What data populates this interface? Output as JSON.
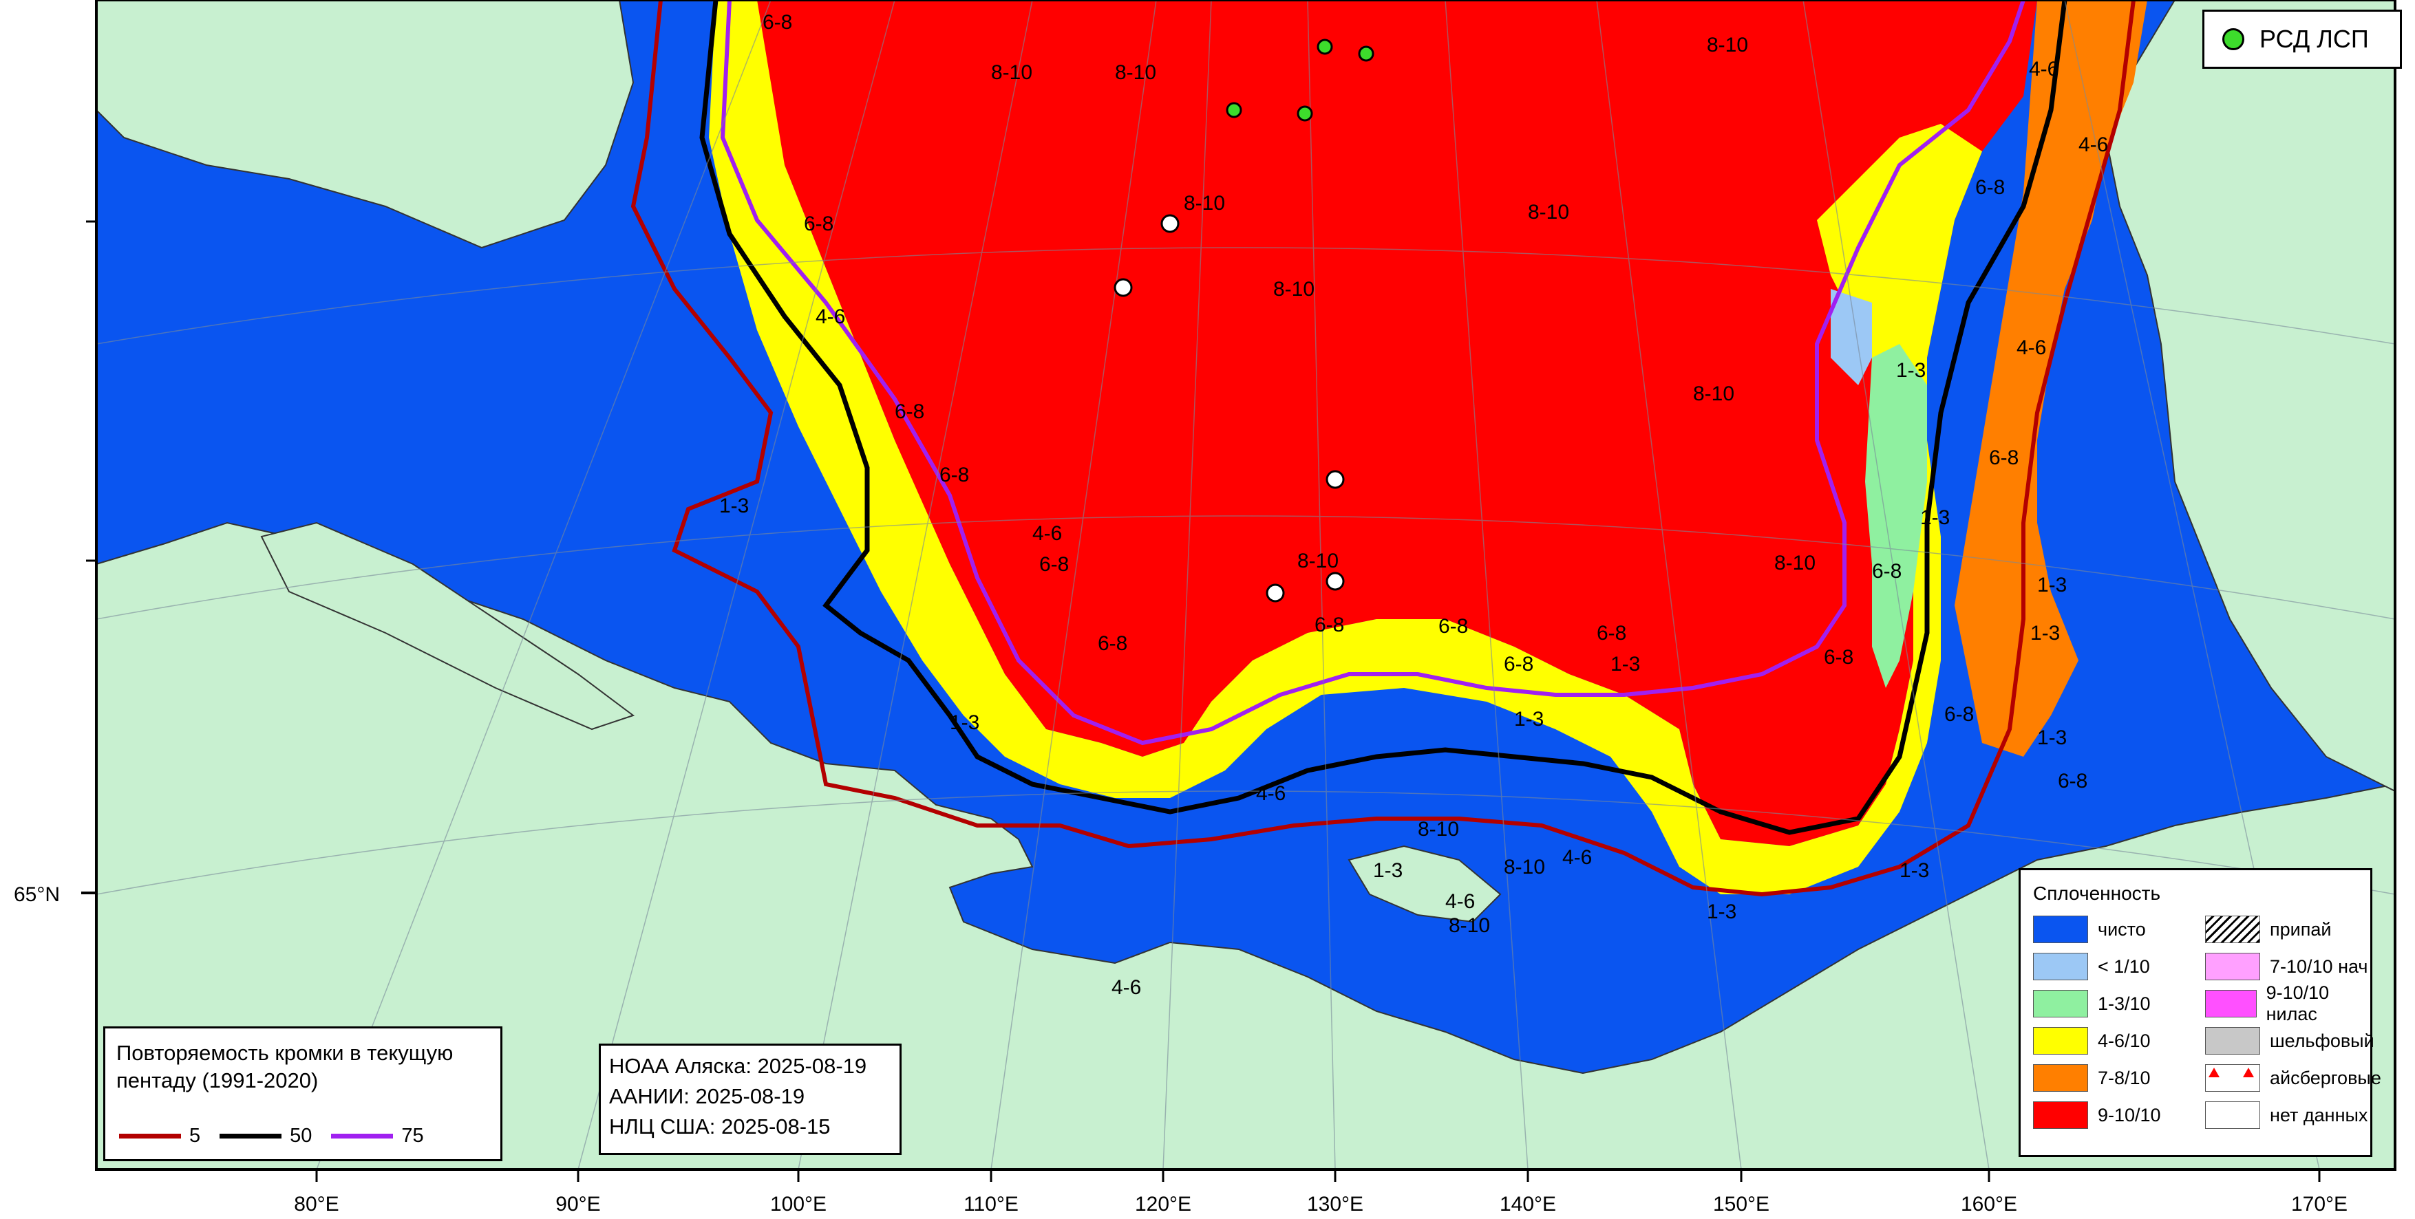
{
  "legend_stations": {
    "label": "РСД ЛСП",
    "color": "#3ddc2c"
  },
  "edge_legend": {
    "title": "Повторяемость кромки в текущую пентаду (1991-2020)",
    "items": [
      {
        "label": "5",
        "color": "#b30000"
      },
      {
        "label": "50",
        "color": "#000000"
      },
      {
        "label": "75",
        "color": "#a020f0"
      }
    ]
  },
  "sources": {
    "noaa": "НОАА Аляска: 2025-08-19",
    "aari": "ААНИИ: 2025-08-19",
    "nic": "НЛЦ США: 2025-08-15"
  },
  "concentration_legend": {
    "title": "Сплоченность",
    "left": [
      {
        "label": "чисто",
        "color": "#0a55f0"
      },
      {
        "label": "< 1/10",
        "color": "#9cc8f5"
      },
      {
        "label": "1-3/10",
        "color": "#8ff0a0"
      },
      {
        "label": "4-6/10",
        "color": "#ffff00"
      },
      {
        "label": "7-8/10",
        "color": "#ff7f00"
      },
      {
        "label": "9-10/10",
        "color": "#ff0000"
      }
    ],
    "right": [
      {
        "label": "припай",
        "color": "#ffffff",
        "icon": "hatch-icon"
      },
      {
        "label": "7-10/10 нач",
        "color": "#ffa0ff"
      },
      {
        "label": "9-10/10 нилас",
        "color": "#ff50ff"
      },
      {
        "label": "шельфовый",
        "color": "#c8c8c8"
      },
      {
        "label": "айсберговые",
        "color": "#ffffff",
        "icon": "iceberg-triangles-icon"
      },
      {
        "label": "нет данных",
        "color": "#ffffff"
      }
    ]
  },
  "axis": {
    "lat_label": "65°N",
    "lon_labels": [
      "80°E",
      "90°E",
      "100°E",
      "110°E",
      "120°E",
      "130°E",
      "140°E",
      "150°E",
      "160°E",
      "170°E"
    ]
  },
  "colors": {
    "land": "#c8f0d0",
    "water": "#0a55f0"
  },
  "map_labels": [
    "8-10",
    "8-10",
    "8-10",
    "8-10",
    "8-10",
    "8-10",
    "8-10",
    "8-10",
    "8-10",
    "8-10",
    "8-10",
    "8-10",
    "6-8",
    "6-8",
    "6-8",
    "6-8",
    "6-8",
    "6-8",
    "6-8",
    "6-8",
    "6-8",
    "6-8",
    "6-8",
    "6-8",
    "6-8",
    "6-8",
    "6-8",
    "6-8",
    "4-6",
    "4-6",
    "4-6",
    "4-6",
    "4-6",
    "4-6",
    "4-6",
    "4-6",
    "4-6",
    "1-3",
    "1-3",
    "1-3",
    "1-3",
    "1-3",
    "1-3",
    "1-3",
    "1-3",
    "1-3",
    "1-3",
    "1-3",
    "1-3"
  ]
}
